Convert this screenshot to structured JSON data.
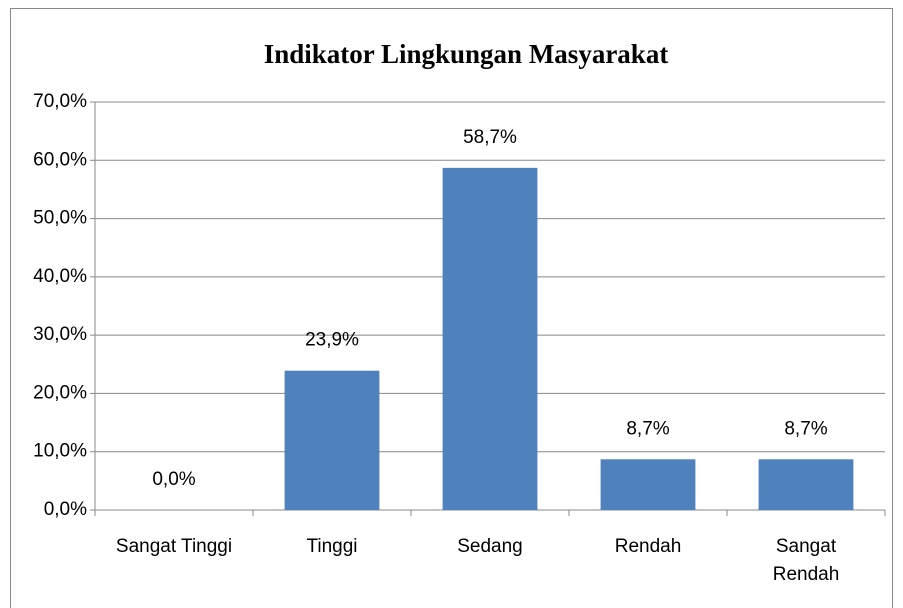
{
  "chart_data": {
    "type": "bar",
    "title": "Indikator Lingkungan Masyarakat",
    "categories": [
      "Sangat Tinggi",
      "Tinggi",
      "Sedang",
      "Rendah",
      "Sangat Rendah"
    ],
    "values": [
      0.0,
      23.9,
      58.7,
      8.7,
      8.7
    ],
    "value_labels": [
      "0,0%",
      "23,9%",
      "58,7%",
      "8,7%",
      "8,7%"
    ],
    "color": "#4f81bd",
    "ylim": [
      0,
      70
    ],
    "yticks": [
      {
        "value": 0,
        "label": "0,0%"
      },
      {
        "value": 10,
        "label": "10,0%"
      },
      {
        "value": 20,
        "label": "20,0%"
      },
      {
        "value": 30,
        "label": "30,0%"
      },
      {
        "value": 40,
        "label": "40,0%"
      },
      {
        "value": 50,
        "label": "50,0%"
      },
      {
        "value": 60,
        "label": "60,0%"
      },
      {
        "value": 70,
        "label": "70,0%"
      }
    ],
    "grid": true
  }
}
